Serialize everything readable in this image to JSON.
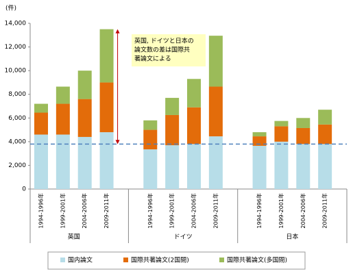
{
  "chart_data": {
    "type": "stacked-bar",
    "unit_label": "(件)",
    "categories": [
      "1994-1996年",
      "1999-2001年",
      "2004-2006年",
      "2009-2011年",
      "1994-1996年",
      "1999-2001年",
      "2004-2006年",
      "2009-2011年",
      "1994-1996年",
      "1999-2001年",
      "2004-2006年",
      "2009-2011年"
    ],
    "groups": [
      "英国",
      "ドイツ",
      "日本"
    ],
    "series": [
      {
        "name": "国内論文",
        "color": "#b7dde8",
        "values": [
          4600,
          4600,
          4400,
          4800,
          3350,
          3700,
          3800,
          4450,
          3650,
          4000,
          3800,
          3800
        ]
      },
      {
        "name": "国際共著論文(2国間)",
        "color": "#e36c0a",
        "values": [
          1850,
          2600,
          3200,
          4200,
          1650,
          2550,
          3100,
          4200,
          800,
          1300,
          1350,
          1650
        ]
      },
      {
        "name": "国際共著論文(多国間)",
        "color": "#9bbb59",
        "values": [
          750,
          1450,
          2400,
          4500,
          800,
          1450,
          2400,
          4300,
          350,
          450,
          850,
          1250
        ]
      }
    ],
    "ylim": [
      0,
      14000
    ],
    "yticks": [
      0,
      {
        "value": 2000,
        "label": "2,000"
      },
      {
        "value": 4000,
        "label": "4,000"
      },
      {
        "value": 6000,
        "label": "6,000"
      },
      {
        "value": 8000,
        "label": "8,000"
      },
      {
        "value": 10000,
        "label": "10,000"
      },
      {
        "value": 12000,
        "label": "12,000"
      },
      {
        "value": 14000,
        "label": "14,000"
      }
    ],
    "reference_line": 3800,
    "annotation": [
      "英国, ドイツと日本の",
      "論文数の差は国際共",
      "著論文による"
    ]
  }
}
